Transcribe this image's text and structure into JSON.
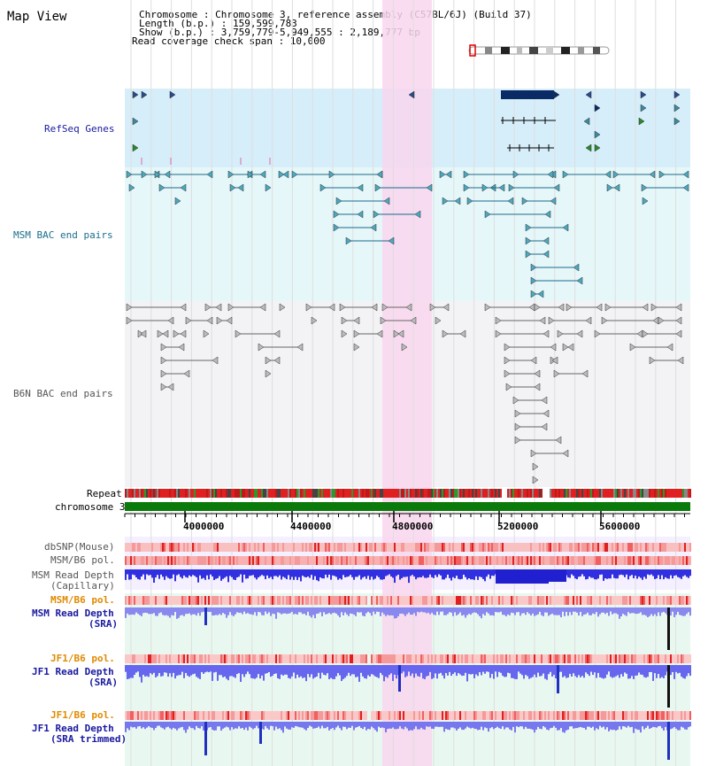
{
  "title": "Map View",
  "header": {
    "line1": "Chromosome    : Chromosome 3, reference assembly (C57BL/6J) (Build 37)",
    "line2": "Length (b.p.) : 159,599,783",
    "line3": "  Show (b.p.) : 3,759,779-5,949,555 : 2,189,777 bp",
    "line4": "Read coverage check span : 10,000"
  },
  "tracks": {
    "refseq": "RefSeq Genes",
    "msm_bac": "MSM BAC end pairs",
    "b6n_bac": "B6N BAC end pairs",
    "repeat": "Repeat",
    "chromosome": "chromosome 3",
    "dbsnp": "dbSNP(Mouse)",
    "msm_b6_pol_1": "MSM/B6 pol.",
    "msm_depth_cap_1": "MSM Read Depth",
    "msm_depth_cap_2": "(Capillary)",
    "msm_b6_pol_2": "MSM/B6 pol.",
    "msm_depth_sra_1": "MSM Read Depth",
    "msm_depth_sra_2": "(SRA)",
    "jf1_b6_pol_1": "JF1/B6 pol.",
    "jf1_depth_sra_1": "JF1 Read Depth",
    "jf1_depth_sra_2": "(SRA)",
    "jf1_b6_pol_2": "JF1/B6 pol.",
    "jf1_depth_trim_1": "JF1 Read Depth",
    "jf1_depth_trim_2": "(SRA trimmed)"
  },
  "ruler": {
    "ticks": [
      "4000000",
      "4400000",
      "4800000",
      "5200000",
      "5600000"
    ]
  },
  "colors": {
    "highlight": "#f9d6ef",
    "refseq_bg": "#d6eefa",
    "msm_bg": "#e6f7f9",
    "b6n_bg": "#f3f3f6",
    "chromosome_bar": "#0a7a0a",
    "navy_label": "#1a1aa0",
    "teal_label": "#1a6e8c",
    "orange_label": "#e08a00"
  }
}
